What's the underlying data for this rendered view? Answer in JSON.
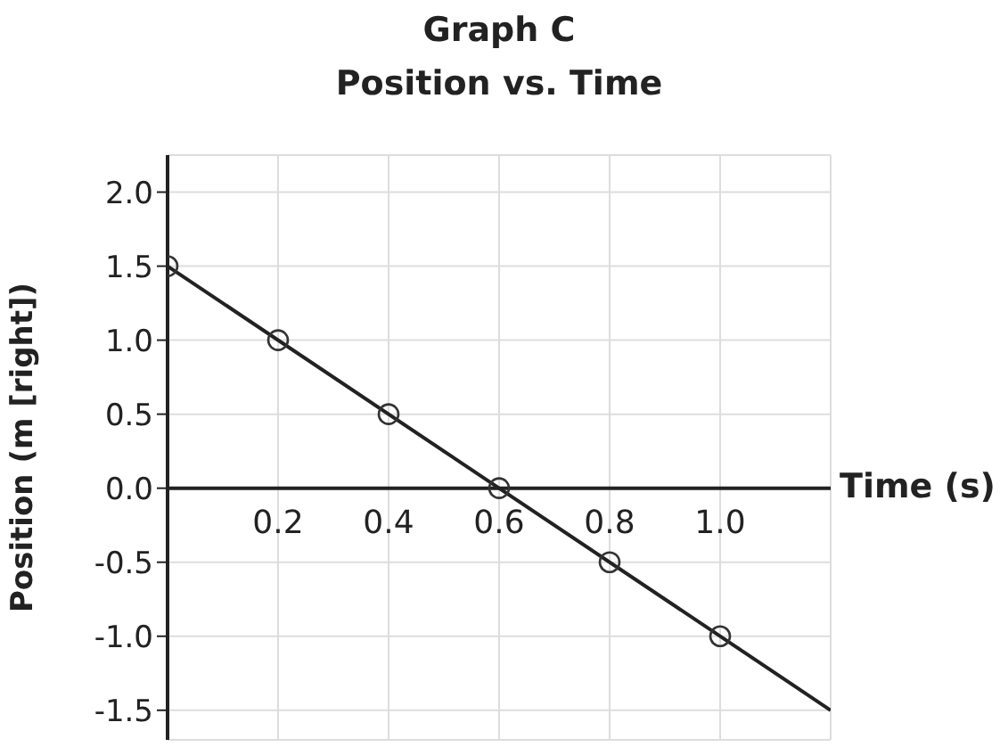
{
  "chart_data": {
    "type": "scatter",
    "title": "Graph C",
    "subtitle": "Position vs. Time",
    "xlabel": "Time (s)",
    "ylabel": "Position (m [right])",
    "x": [
      0,
      0.2,
      0.4,
      0.6,
      0.8,
      1.0
    ],
    "series": [
      {
        "color": "#333333",
        "marker": "circle",
        "values": [
          1.5,
          1,
          0.5,
          0,
          -0.5,
          -1
        ]
      },
      {
        "type": "line",
        "color": "#222222",
        "marker": "none",
        "x": [
          0,
          1.2
        ],
        "values": [
          1.5,
          -1.5
        ]
      }
    ],
    "xlim": [
      0,
      1.2
    ],
    "ylim": [
      -1.7,
      2.25
    ],
    "xticks": [
      {
        "value": 0.2,
        "label": "0.2"
      },
      {
        "value": 0.4,
        "label": "0.4"
      },
      {
        "value": 0.6,
        "label": "0.6"
      },
      {
        "value": 0.8,
        "label": "0.8"
      },
      {
        "value": 1,
        "label": "1.0"
      }
    ],
    "yticks": [
      {
        "value": -1.5,
        "label": "-1.5"
      },
      {
        "value": -1,
        "label": "-1.0"
      },
      {
        "value": -0.5,
        "label": "-0.5"
      },
      {
        "value": 0,
        "label": "0.0"
      },
      {
        "value": 0.5,
        "label": "0.5"
      },
      {
        "value": 1,
        "label": "1.0"
      },
      {
        "value": 1.5,
        "label": "1.5"
      },
      {
        "value": 2,
        "label": "2.0"
      }
    ],
    "grid": true
  }
}
